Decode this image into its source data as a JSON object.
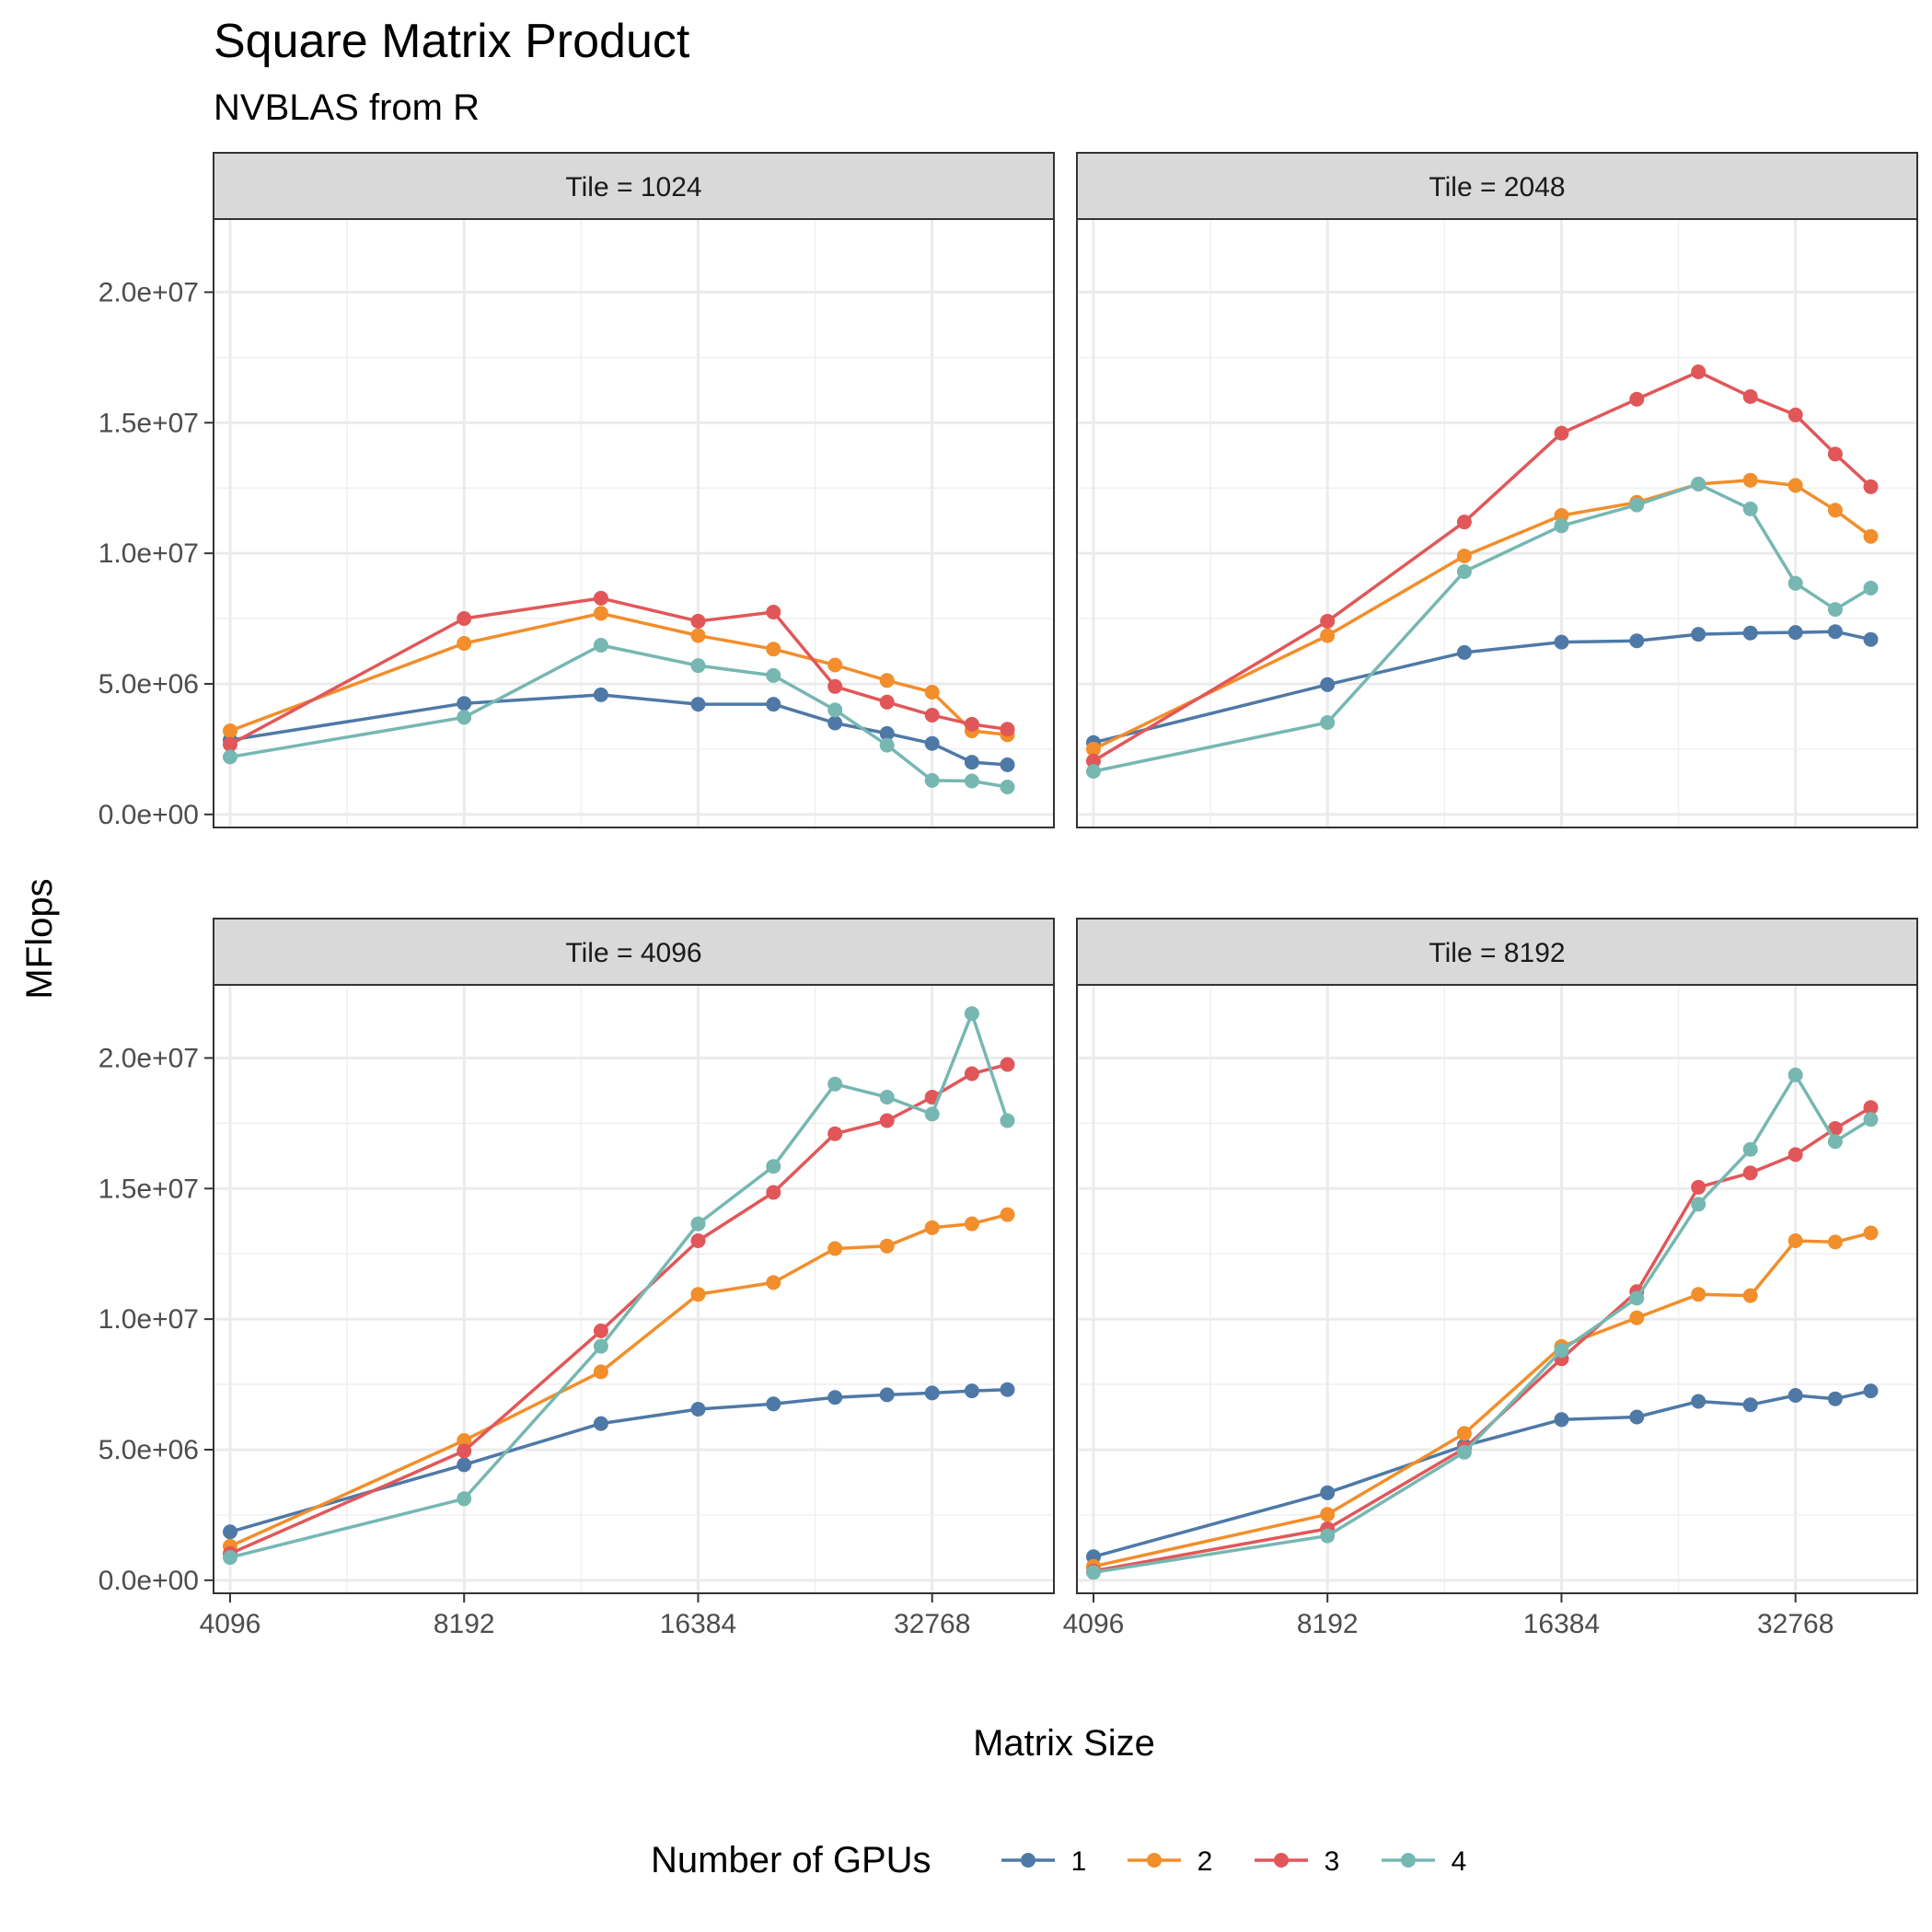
{
  "chart_data": {
    "type": "line",
    "title": "Square Matrix Product",
    "subtitle": "NVBLAS from R",
    "xlabel": "Matrix Size",
    "ylabel": "MFlops",
    "x_scale": "log2",
    "x_ticks": [
      4096,
      8192,
      16384,
      32768
    ],
    "x_tick_labels": [
      "4096",
      "8192",
      "16384",
      "32768"
    ],
    "y_ticks": [
      0,
      5000000,
      10000000,
      15000000,
      20000000
    ],
    "y_tick_labels": [
      "0.0e+00",
      "5.0e+06",
      "1.0e+07",
      "1.5e+07",
      "2.0e+07"
    ],
    "xlim": [
      3900,
      47000
    ],
    "ylim": [
      -500000,
      22800000
    ],
    "grid": true,
    "legend": {
      "title": "Number of GPUs",
      "position": "bottom",
      "entries": [
        "1",
        "2",
        "3",
        "4"
      ]
    },
    "colors": {
      "1": "#4e79a7",
      "2": "#f28e2b",
      "3": "#e15759",
      "4": "#76b7b2"
    },
    "x": [
      4096,
      8192,
      12288,
      16384,
      20480,
      24576,
      28672,
      32768,
      36864,
      40960
    ],
    "panels": [
      {
        "strip": "Tile = 1024",
        "series": [
          {
            "name": "1",
            "values": [
              2850000,
              4250000,
              4580000,
              4220000,
              4220000,
              3500000,
              3100000,
              2720000,
              2000000,
              1900000
            ]
          },
          {
            "name": "2",
            "values": [
              3200000,
              6550000,
              7700000,
              6850000,
              6330000,
              5720000,
              5130000,
              4680000,
              3200000,
              3050000
            ]
          },
          {
            "name": "3",
            "values": [
              2680000,
              7500000,
              8280000,
              7400000,
              7750000,
              4900000,
              4300000,
              3800000,
              3450000,
              3260000
            ]
          },
          {
            "name": "4",
            "values": [
              2200000,
              3720000,
              6480000,
              5700000,
              5320000,
              4000000,
              2650000,
              1300000,
              1280000,
              1050000
            ]
          }
        ]
      },
      {
        "strip": "Tile = 2048",
        "series": [
          {
            "name": "1",
            "values": [
              2750000,
              4970000,
              6200000,
              6600000,
              6650000,
              6900000,
              6950000,
              6970000,
              7000000,
              6700000
            ]
          },
          {
            "name": "2",
            "values": [
              2500000,
              6850000,
              9900000,
              11450000,
              11950000,
              12650000,
              12800000,
              12600000,
              11650000,
              10650000
            ]
          },
          {
            "name": "3",
            "values": [
              2050000,
              7400000,
              11200000,
              14600000,
              15900000,
              16950000,
              16000000,
              15300000,
              13800000,
              12550000
            ]
          },
          {
            "name": "4",
            "values": [
              1650000,
              3520000,
              9300000,
              11050000,
              11850000,
              12650000,
              11700000,
              8850000,
              7850000,
              8670000
            ]
          }
        ]
      },
      {
        "strip": "Tile = 4096",
        "series": [
          {
            "name": "1",
            "values": [
              1850000,
              4420000,
              6000000,
              6550000,
              6750000,
              7000000,
              7100000,
              7170000,
              7250000,
              7300000
            ]
          },
          {
            "name": "2",
            "values": [
              1300000,
              5350000,
              7980000,
              10950000,
              11400000,
              12700000,
              12800000,
              13500000,
              13650000,
              14000000
            ]
          },
          {
            "name": "3",
            "values": [
              1020000,
              4950000,
              9550000,
              13000000,
              14850000,
              17100000,
              17600000,
              18500000,
              19400000,
              19750000
            ]
          },
          {
            "name": "4",
            "values": [
              870000,
              3120000,
              8960000,
              13650000,
              15850000,
              19000000,
              18500000,
              17850000,
              21700000,
              17600000
            ]
          }
        ]
      },
      {
        "strip": "Tile = 8192",
        "series": [
          {
            "name": "1",
            "values": [
              900000,
              3350000,
              5150000,
              6150000,
              6250000,
              6850000,
              6720000,
              7080000,
              6950000,
              7250000
            ]
          },
          {
            "name": "2",
            "values": [
              530000,
              2520000,
              5620000,
              8950000,
              10050000,
              10950000,
              10900000,
              13000000,
              12950000,
              13300000
            ]
          },
          {
            "name": "3",
            "values": [
              350000,
              1970000,
              5050000,
              8480000,
              11050000,
              15050000,
              15600000,
              16300000,
              17300000,
              18100000
            ]
          },
          {
            "name": "4",
            "values": [
              300000,
              1700000,
              4900000,
              8800000,
              10800000,
              14400000,
              16500000,
              19350000,
              16800000,
              17650000
            ]
          }
        ]
      }
    ]
  }
}
